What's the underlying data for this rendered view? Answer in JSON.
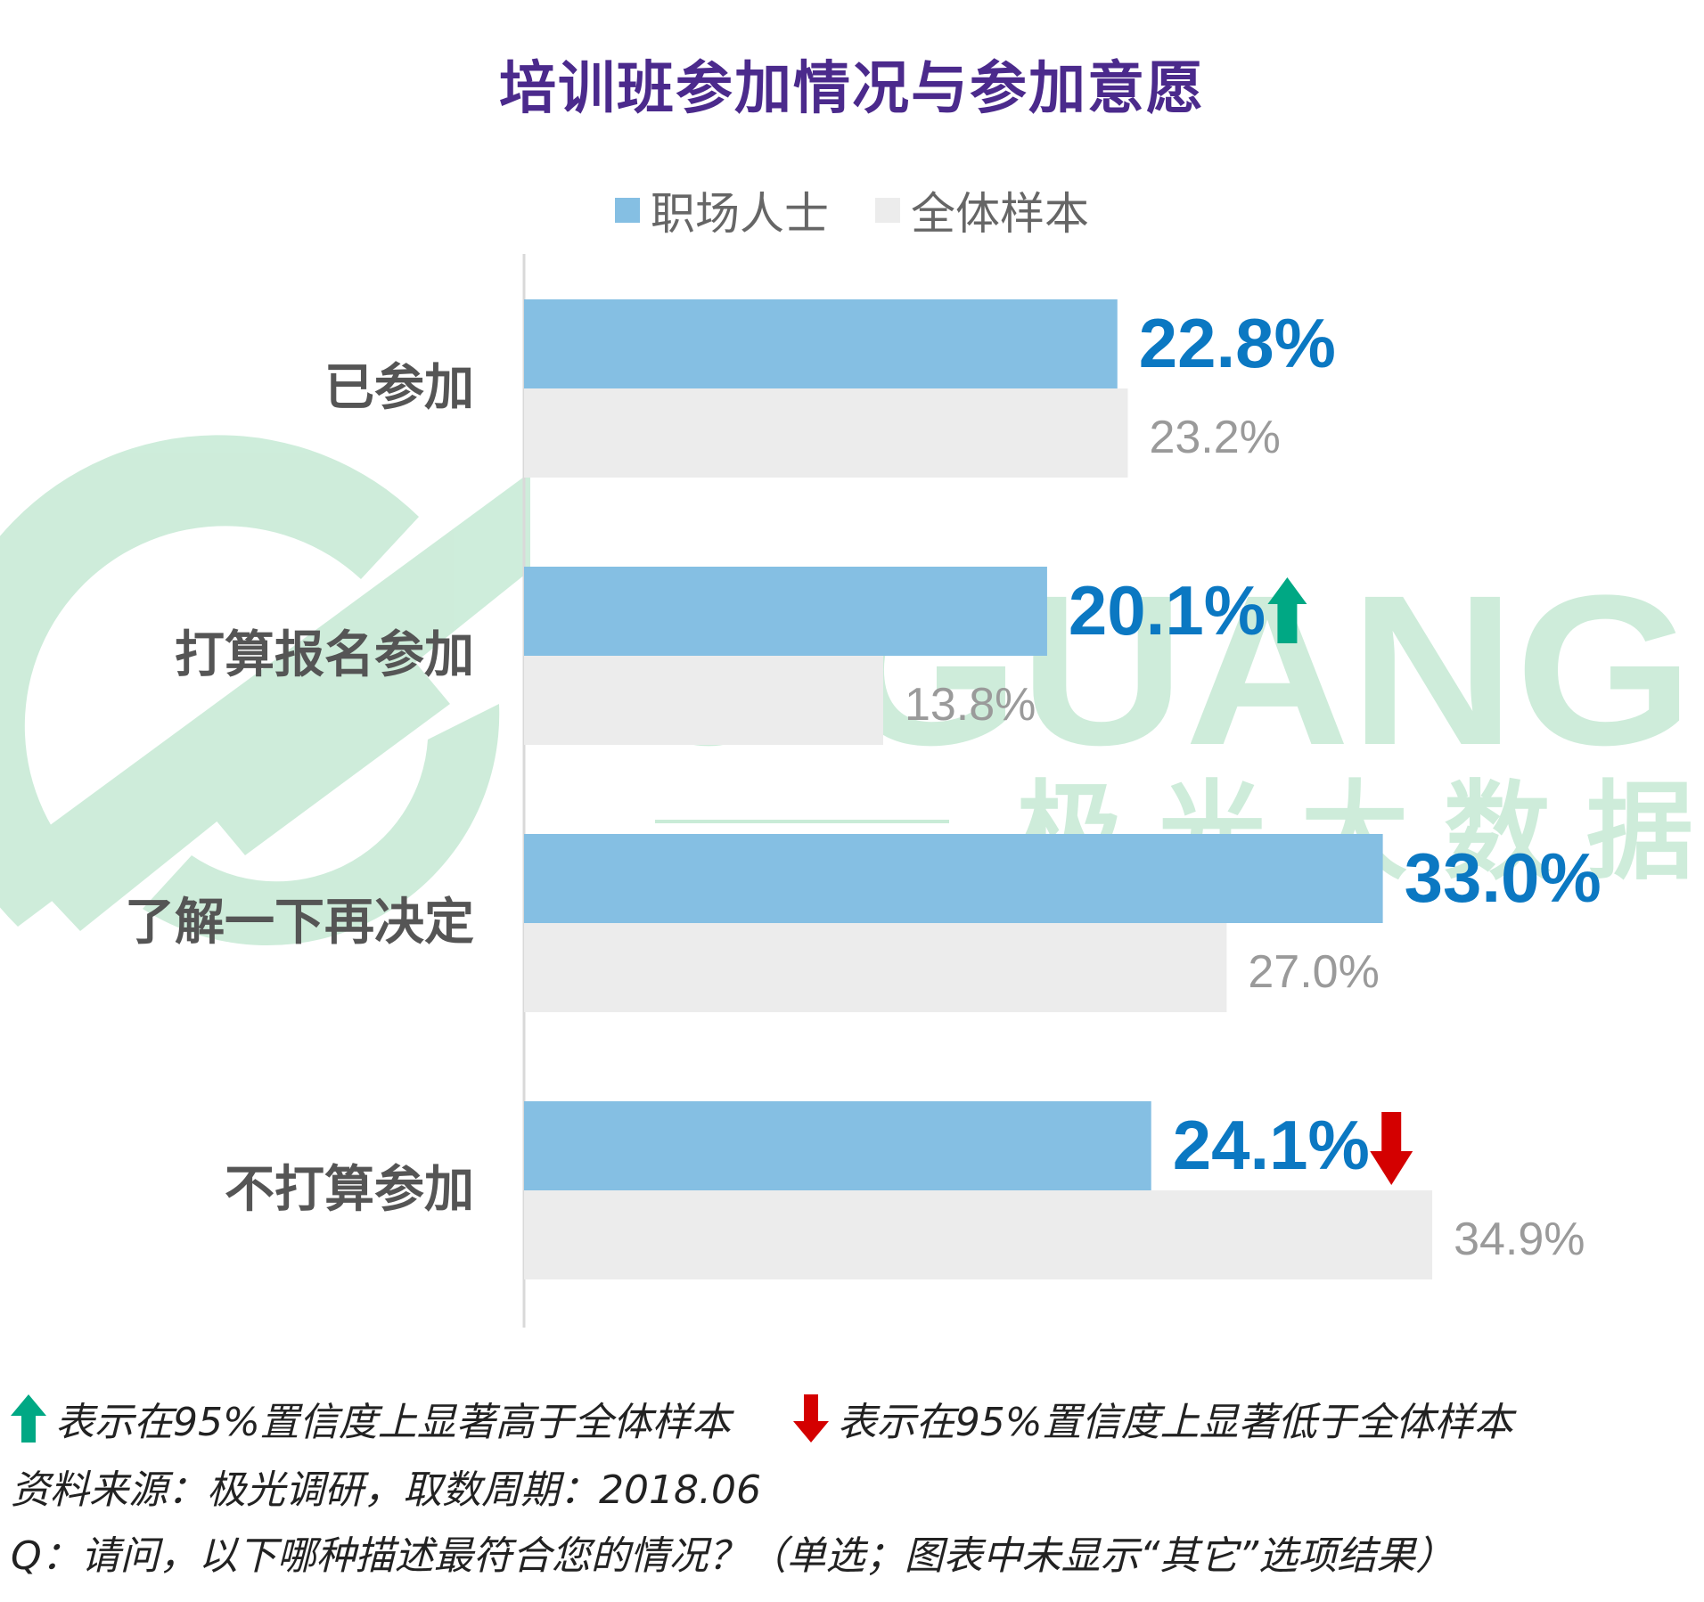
{
  "title": "培训班参加情况与参加意愿",
  "legend": [
    {
      "label": "职场人士",
      "color": "#85bfe3"
    },
    {
      "label": "全体样本",
      "color": "#ececec"
    }
  ],
  "chart_data": {
    "type": "bar",
    "orientation": "horizontal",
    "categories": [
      "已参加",
      "打算报名参加",
      "了解一下再决定",
      "不打算参加"
    ],
    "series": [
      {
        "name": "职场人士",
        "values": [
          22.8,
          20.1,
          33.0,
          24.1
        ],
        "labels": [
          "22.8%",
          "20.1%",
          "33.0%",
          "24.1%"
        ],
        "color": "#85bfe3",
        "label_color": "#0b78c2"
      },
      {
        "name": "全体样本",
        "values": [
          23.2,
          13.8,
          27.0,
          34.9
        ],
        "labels": [
          "23.2%",
          "13.8%",
          "27.0%",
          "34.9%"
        ],
        "color": "#ececec",
        "label_color": "#9a9a9a"
      }
    ],
    "significance": [
      null,
      "higher",
      null,
      "lower"
    ],
    "xlim": [
      0,
      42
    ],
    "grid": false
  },
  "watermark": {
    "text": "JIGUANG",
    "subtext": "极光大数据",
    "color": "#c9ebd7"
  },
  "notes": {
    "up_color": "#00a884",
    "down_color": "#d40000",
    "higher_text": "表示在95%置信度上显著高于全体样本",
    "lower_text": "表示在95%置信度上显著低于全体样本",
    "source": "资料来源：极光调研，取数周期：2018.06",
    "question": "Q：请问，以下哪种描述最符合您的情况？（单选；图表中未显示“其它”选项结果）"
  }
}
